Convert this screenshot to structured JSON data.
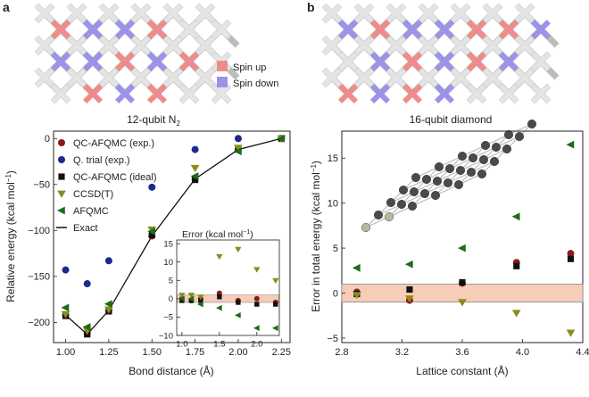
{
  "panels": [
    {
      "letter": "a",
      "caption": "12-qubit N",
      "caption_sub": "2"
    },
    {
      "letter": "b",
      "caption": "16-qubit diamond"
    }
  ],
  "spin_legend": [
    {
      "label": "Spin up",
      "color": "#ee8c8c"
    },
    {
      "label": "Spin down",
      "color": "#9a93ea"
    }
  ],
  "lattice": {
    "tile_color": "#e4e4e4",
    "link_color": "#bcbcbc",
    "panel_a": {
      "cols": 6,
      "up": [
        [
          0,
          1
        ],
        [
          2,
          3
        ],
        [
          3,
          1
        ],
        [
          4,
          3
        ],
        [
          1,
          5
        ],
        [
          3,
          5
        ]
      ],
      "down": [
        [
          1,
          1
        ],
        [
          0,
          3
        ],
        [
          2,
          1
        ],
        [
          1,
          3
        ],
        [
          3,
          3
        ],
        [
          2,
          5
        ]
      ]
    },
    "panel_b": {
      "cols": 7,
      "up": [
        [
          1,
          1
        ],
        [
          4,
          3
        ],
        [
          4,
          1
        ],
        [
          2,
          3
        ],
        [
          0,
          5
        ],
        [
          2,
          5
        ],
        [
          5,
          1
        ]
      ],
      "down": [
        [
          0,
          1
        ],
        [
          1,
          3
        ],
        [
          2,
          1
        ],
        [
          3,
          3
        ],
        [
          5,
          3
        ],
        [
          3,
          5
        ],
        [
          1,
          5
        ],
        [
          3,
          1
        ],
        [
          6,
          1
        ]
      ]
    }
  },
  "chart_data": [
    {
      "type": "scatter",
      "xlabel": "Bond distance (Å)",
      "ylabel": "Relative energy (kcal mol",
      "ylabel_sup": "−1",
      "ylabel_end": ")",
      "xlim": [
        0.93,
        2.3
      ],
      "ylim": [
        -222,
        8
      ],
      "xticks": [
        "1.00",
        "1.25",
        "1.50",
        "1.75",
        "2.00",
        "2.25"
      ],
      "yticks": [
        "0",
        "−50",
        "−100",
        "−150",
        "−200"
      ],
      "series": [
        {
          "name": "QC-AFQMC (exp.)",
          "marker": "circle",
          "color": "#8b1a1a",
          "x": [
            1.0,
            1.125,
            1.25,
            1.5,
            1.75,
            2.0,
            2.25
          ],
          "y": [
            -192,
            -212,
            -187,
            -106,
            -44,
            -12,
            0
          ]
        },
        {
          "name": "Q. trial (exp.)",
          "marker": "circle",
          "color": "#1d2a8a",
          "x": [
            1.0,
            1.125,
            1.25,
            1.5,
            1.75,
            2.0
          ],
          "y": [
            -143,
            -158,
            -133,
            -53,
            -12,
            0
          ]
        },
        {
          "name": "QC-AFQMC (ideal)",
          "marker": "square",
          "color": "#111111",
          "x": [
            1.0,
            1.125,
            1.25,
            1.5,
            1.75,
            2.0,
            2.25
          ],
          "y": [
            -193,
            -213,
            -188,
            -105,
            -45,
            -12,
            0
          ]
        },
        {
          "name": "CCSD(T)",
          "marker": "triangle-down",
          "color": "#8b8b1a",
          "x": [
            1.0,
            1.125,
            1.25,
            1.5,
            1.75,
            2.0,
            2.25
          ],
          "y": [
            -191,
            -209,
            -186,
            -99,
            -32,
            -10,
            0
          ]
        },
        {
          "name": "AFQMC",
          "marker": "triangle-left",
          "color": "#1d6b1d",
          "x": [
            1.0,
            1.125,
            1.25,
            1.5,
            1.75,
            2.0,
            2.25
          ],
          "y": [
            -184,
            -205,
            -180,
            -101,
            -41,
            -14,
            0
          ]
        },
        {
          "name": "Exact",
          "marker": "line",
          "color": "#111111",
          "x": [
            1.0,
            1.125,
            1.25,
            1.5,
            1.75,
            2.0,
            2.25
          ],
          "y": [
            -192,
            -213,
            -187,
            -106,
            -44,
            -12,
            0
          ]
        }
      ]
    },
    {
      "type": "scatter",
      "title": "Error (kcal mol",
      "title_sup": "−1",
      "title_end": ")",
      "xlim": [
        0.93,
        2.3
      ],
      "ylim": [
        -10,
        16
      ],
      "xticks": [
        "1.0",
        "1.5",
        "2.0"
      ],
      "yticks": [
        "15",
        "10",
        "5",
        "0",
        "−5",
        "−10"
      ],
      "band": [
        -1,
        1
      ],
      "series": [
        {
          "name": "QC-AFQMC (exp.)",
          "marker": "circle",
          "color": "#8b1a1a",
          "x": [
            1.0,
            1.125,
            1.25,
            1.5,
            1.75,
            2.0,
            2.25
          ],
          "y": [
            0,
            -0.5,
            0,
            1.5,
            -0.5,
            0,
            -1
          ]
        },
        {
          "name": "QC-AFQMC (ideal)",
          "marker": "square",
          "color": "#111111",
          "x": [
            1.0,
            1.125,
            1.25,
            1.5,
            1.75,
            2.0,
            2.25
          ],
          "y": [
            -0.5,
            -0.5,
            -0.5,
            0.5,
            -1,
            -1.5,
            -1.5
          ]
        },
        {
          "name": "CCSD(T)",
          "marker": "triangle-down",
          "color": "#8b8b1a",
          "x": [
            1.0,
            1.125,
            1.25,
            1.5,
            1.75,
            2.0,
            2.25
          ],
          "y": [
            1,
            1,
            0.5,
            11.5,
            13.5,
            8,
            5
          ]
        },
        {
          "name": "AFQMC",
          "marker": "triangle-left",
          "color": "#1d6b1d",
          "x": [
            1.0,
            1.125,
            1.25,
            1.5,
            1.75,
            2.0,
            2.25
          ],
          "y": [
            0,
            0,
            -1.5,
            -2.5,
            -4.5,
            -8,
            -8
          ]
        }
      ]
    },
    {
      "type": "scatter",
      "xlabel": "Lattice constant (Å)",
      "ylabel": "Error in total energy (kcal mol",
      "ylabel_sup": "−1",
      "ylabel_end": ")",
      "xlim": [
        2.8,
        4.4
      ],
      "ylim": [
        -5.5,
        18
      ],
      "xticks": [
        "2.8",
        "3.2",
        "3.6",
        "4.0",
        "4.4"
      ],
      "yticks": [
        "15",
        "10",
        "5",
        "0",
        "−5"
      ],
      "band": [
        -1,
        1
      ],
      "series": [
        {
          "name": "QC-AFQMC (exp.)",
          "marker": "circle",
          "color": "#8b1a1a",
          "x": [
            2.9,
            3.25,
            3.6,
            3.96,
            4.32
          ],
          "y": [
            0.1,
            -0.8,
            1.1,
            3.4,
            4.4
          ]
        },
        {
          "name": "QC-AFQMC (ideal)",
          "marker": "square",
          "color": "#111111",
          "x": [
            2.9,
            3.25,
            3.6,
            3.96,
            4.32
          ],
          "y": [
            -0.1,
            0.4,
            1.2,
            3.0,
            3.8
          ]
        },
        {
          "name": "CCSD(T)",
          "marker": "triangle-down",
          "color": "#8b8b1a",
          "x": [
            2.9,
            3.25,
            3.6,
            3.96,
            4.32
          ],
          "y": [
            -0.2,
            -0.6,
            -1.0,
            -2.2,
            -4.4
          ]
        },
        {
          "name": "AFQMC",
          "marker": "triangle-left",
          "color": "#1d6b1d",
          "x": [
            2.9,
            3.25,
            3.6,
            3.96,
            4.32
          ],
          "y": [
            2.8,
            3.2,
            5.0,
            8.5,
            16.5
          ]
        }
      ]
    }
  ]
}
